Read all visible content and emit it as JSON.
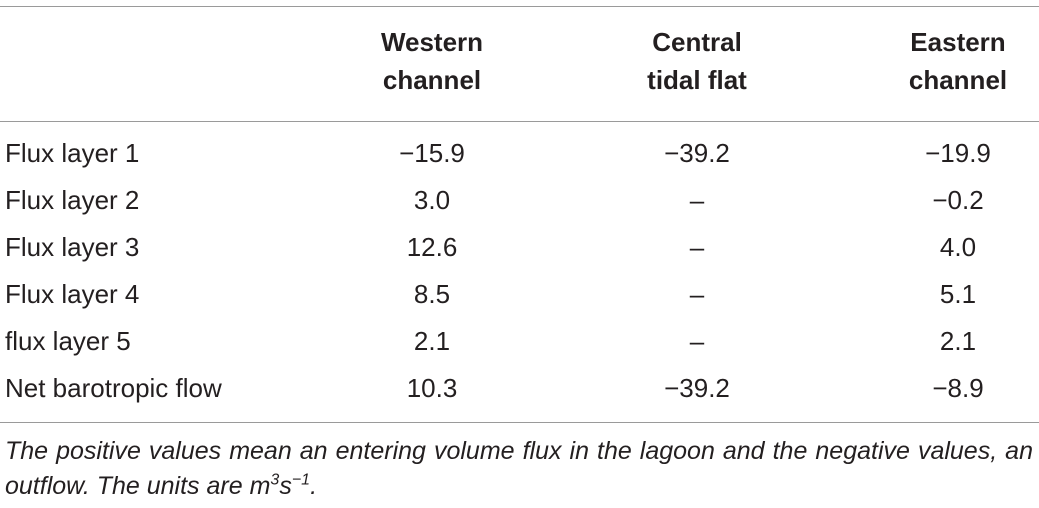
{
  "table": {
    "header": [
      [],
      [
        "Western",
        "channel"
      ],
      [
        "Central",
        "tidal flat"
      ],
      [
        "Eastern",
        "channel"
      ]
    ],
    "rows": [
      [
        "Flux layer 1",
        "−15.9",
        "−39.2",
        "−19.9"
      ],
      [
        "Flux layer 2",
        "3.0",
        "–",
        "−0.2"
      ],
      [
        "Flux layer 3",
        "12.6",
        "–",
        "4.0"
      ],
      [
        "Flux layer 4",
        "8.5",
        "–",
        "5.1"
      ],
      [
        "flux layer 5",
        "2.1",
        "–",
        "2.1"
      ],
      [
        "Net barotropic flow",
        "10.3",
        "−39.2",
        "−8.9"
      ]
    ],
    "note": {
      "text": "The positive values mean an entering volume flux in the lagoon and the negative values, an outflow. The units are ",
      "unit": "m",
      "unit_exp": "3",
      "unit2": "s",
      "unit2_exp": "−1",
      "end": "."
    }
  }
}
